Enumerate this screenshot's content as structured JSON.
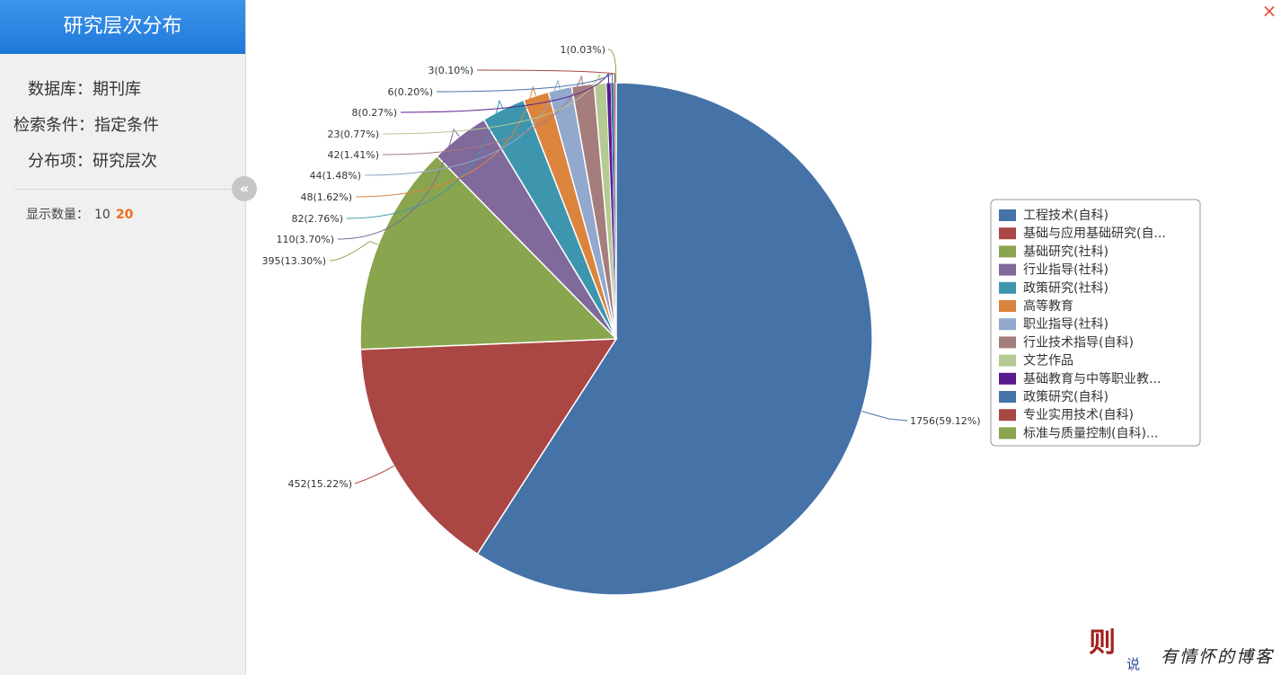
{
  "sidebar": {
    "title": "研究层次分布",
    "database_label": "数据库：",
    "database_value": "期刊库",
    "condition_label": "检索条件：",
    "condition_value": "指定条件",
    "field_label": "分布项：",
    "field_value": "研究层次",
    "count_label": "显示数量：",
    "count_options": [
      "10",
      "20"
    ],
    "count_selected": "20",
    "collapse_icon": "«"
  },
  "close_icon": "×",
  "watermark": {
    "logo_big": "则",
    "logo_small": "说",
    "tagline": "有情怀的博客"
  },
  "chart_data": {
    "type": "pie",
    "slices": [
      {
        "name": "工程技术(自科)",
        "value": 1756,
        "label": "1756(59.12%)",
        "color": "#4572a7"
      },
      {
        "name": "基础与应用基础研究(自...",
        "value": 452,
        "label": "452(15.22%)",
        "color": "#aa4643"
      },
      {
        "name": "基础研究(社科)",
        "value": 395,
        "label": "395(13.30%)",
        "color": "#89a54e"
      },
      {
        "name": "行业指导(社科)",
        "value": 110,
        "label": "110(3.70%)",
        "color": "#80699b"
      },
      {
        "name": "政策研究(社科)",
        "value": 82,
        "label": "82(2.76%)",
        "color": "#3d96ae"
      },
      {
        "name": "高等教育",
        "value": 48,
        "label": "48(1.62%)",
        "color": "#db843d"
      },
      {
        "name": "职业指导(社科)",
        "value": 44,
        "label": "44(1.48%)",
        "color": "#92a8cd"
      },
      {
        "name": "行业技术指导(自科)",
        "value": 42,
        "label": "42(1.41%)",
        "color": "#a47d7c"
      },
      {
        "name": "文艺作品",
        "value": 23,
        "label": "23(0.77%)",
        "color": "#b5ca92"
      },
      {
        "name": "基础教育与中等职业教...",
        "value": 8,
        "label": "8(0.27%)",
        "color": "#5b1a8f"
      },
      {
        "name": "政策研究(自科)",
        "value": 6,
        "label": "6(0.20%)",
        "color": "#4572a7"
      },
      {
        "name": "专业实用技术(自科)",
        "value": 3,
        "label": "3(0.10%)",
        "color": "#aa4643"
      },
      {
        "name": "标准与质量控制(自科)...",
        "value": 1,
        "label": "1(0.03%)",
        "color": "#89a54e"
      }
    ],
    "legend_position": "right"
  }
}
